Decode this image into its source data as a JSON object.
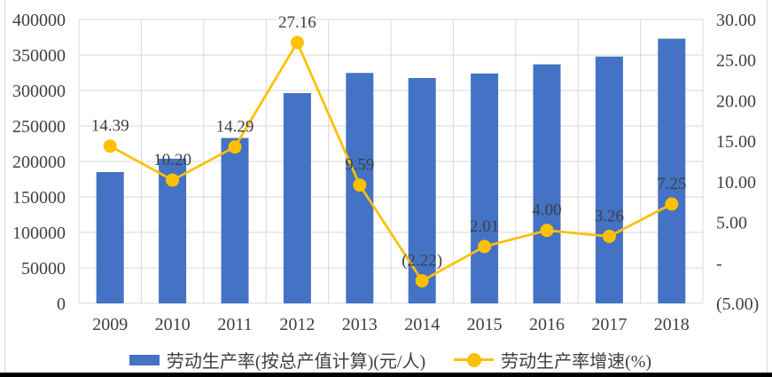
{
  "page": {
    "background": "#ffffff",
    "frame_border_color": "#dcdcdc",
    "bottom_rule_color": "#000000"
  },
  "chart_data": {
    "type": "combo-bar-line",
    "title": "",
    "categories": [
      "2009",
      "2010",
      "2011",
      "2012",
      "2013",
      "2014",
      "2015",
      "2016",
      "2017",
      "2018"
    ],
    "series": [
      {
        "name": "劳动生产率(按总产值计算)(元/人)",
        "type": "bar",
        "axis": "left",
        "color": "#4472c4",
        "values": [
          185000,
          203900,
          233000,
          296300,
          324700,
          317500,
          323900,
          336800,
          347800,
          373000
        ]
      },
      {
        "name": "劳动生产率增速(%)",
        "type": "line",
        "axis": "right",
        "color": "#ffc000",
        "values": [
          14.39,
          10.2,
          14.29,
          27.16,
          9.59,
          -2.22,
          2.01,
          4.0,
          3.26,
          7.25
        ],
        "point_labels": [
          "14.39",
          "10.20",
          "14.29",
          "27.16",
          "9.59",
          "(2.22)",
          "2.01",
          "4.00",
          "3.26",
          "7.25"
        ]
      }
    ],
    "left_axis": {
      "min": 0,
      "max": 400000,
      "step": 50000,
      "tick_labels": [
        "0",
        "50000",
        "100000",
        "150000",
        "200000",
        "250000",
        "300000",
        "350000",
        "400000"
      ]
    },
    "right_axis": {
      "min": -5,
      "max": 30,
      "step": 5,
      "tick_labels": [
        "(5.00)",
        "-",
        "5.00",
        "10.00",
        "15.00",
        "20.00",
        "25.00",
        "30.00"
      ]
    },
    "grid": {
      "horizontal": true,
      "vertical": true,
      "color": "#d9d9d9"
    },
    "text_color": "#404040",
    "legend_position": "bottom"
  },
  "legend": {
    "items": [
      {
        "label": "劳动生产率(按总产值计算)(元/人)",
        "marker": "bar-swatch",
        "color": "#4472c4"
      },
      {
        "label": "劳动生产率增速(%)",
        "marker": "line-dot-swatch",
        "color": "#ffc000"
      }
    ]
  }
}
